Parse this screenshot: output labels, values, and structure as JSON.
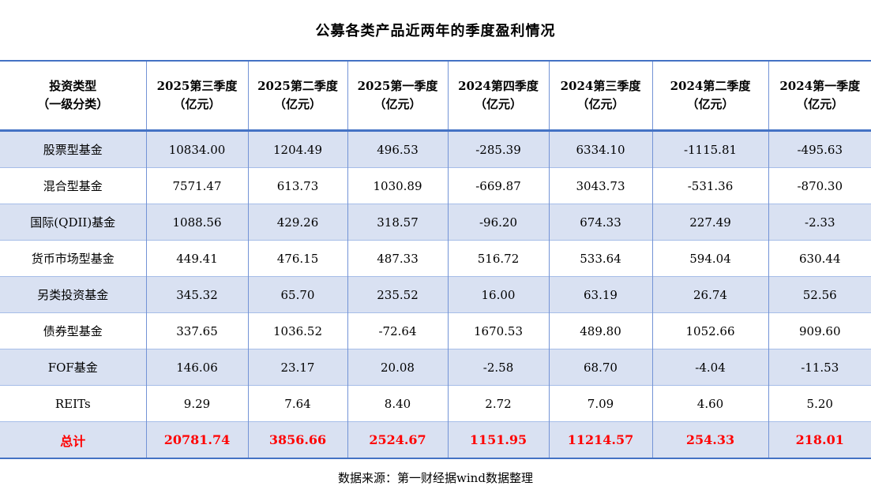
{
  "title": "公募各类产品近两年的季度盈利情况",
  "source_note": "数据来源：第一财经据wind数据整理",
  "colors": {
    "border_strong": "#4472C4",
    "border_vertical": "#7393D6",
    "border_row_separator": "#A6BDE8",
    "row_stripe_background": "#D9E1F2",
    "total_row_text": "#FF0000",
    "body_text": "#000000"
  },
  "table": {
    "header": [
      {
        "line1": "投资类型",
        "line2": "（一级分类）"
      },
      {
        "line1": "2025第三季度",
        "line2": "（亿元）"
      },
      {
        "line1": "2025第二季度",
        "line2": "（亿元）"
      },
      {
        "line1": "2025第一季度",
        "line2": "（亿元）"
      },
      {
        "line1": "2024第四季度",
        "line2": "（亿元）"
      },
      {
        "line1": "2024第三季度",
        "line2": "（亿元）"
      },
      {
        "line1": "2024第二季度",
        "line2": "（亿元）"
      },
      {
        "line1": "2024第一季度",
        "line2": "（亿元）"
      }
    ],
    "rows": [
      {
        "label": "股票型基金",
        "values": [
          "10834.00",
          "1204.49",
          "496.53",
          "-285.39",
          "6334.10",
          "-1115.81",
          "-495.63"
        ]
      },
      {
        "label": "混合型基金",
        "values": [
          "7571.47",
          "613.73",
          "1030.89",
          "-669.87",
          "3043.73",
          "-531.36",
          "-870.30"
        ]
      },
      {
        "label": "国际(QDII)基金",
        "values": [
          "1088.56",
          "429.26",
          "318.57",
          "-96.20",
          "674.33",
          "227.49",
          "-2.33"
        ]
      },
      {
        "label": "货币市场型基金",
        "values": [
          "449.41",
          "476.15",
          "487.33",
          "516.72",
          "533.64",
          "594.04",
          "630.44"
        ]
      },
      {
        "label": "另类投资基金",
        "values": [
          "345.32",
          "65.70",
          "235.52",
          "16.00",
          "63.19",
          "26.74",
          "52.56"
        ]
      },
      {
        "label": "债券型基金",
        "values": [
          "337.65",
          "1036.52",
          "-72.64",
          "1670.53",
          "489.80",
          "1052.66",
          "909.60"
        ]
      },
      {
        "label": "FOF基金",
        "values": [
          "146.06",
          "23.17",
          "20.08",
          "-2.58",
          "68.70",
          "-4.04",
          "-11.53"
        ]
      },
      {
        "label": "REITs",
        "values": [
          "9.29",
          "7.64",
          "8.40",
          "2.72",
          "7.09",
          "4.60",
          "5.20"
        ]
      }
    ],
    "total": {
      "label": "总计",
      "values": [
        "20781.74",
        "3856.66",
        "2524.67",
        "1151.95",
        "11214.57",
        "254.33",
        "218.01"
      ]
    }
  },
  "chart_data": {
    "type": "table",
    "title": "公募各类产品近两年的季度盈利情况",
    "unit": "亿元",
    "columns": [
      "投资类型（一级分类）",
      "2025第三季度（亿元）",
      "2025第二季度（亿元）",
      "2025第一季度（亿元）",
      "2024第四季度（亿元）",
      "2024第三季度（亿元）",
      "2024第二季度（亿元）",
      "2024第一季度（亿元）"
    ],
    "rows": [
      {
        "category": "股票型基金",
        "values": [
          10834.0,
          1204.49,
          496.53,
          -285.39,
          6334.1,
          -1115.81,
          -495.63
        ]
      },
      {
        "category": "混合型基金",
        "values": [
          7571.47,
          613.73,
          1030.89,
          -669.87,
          3043.73,
          -531.36,
          -870.3
        ]
      },
      {
        "category": "国际(QDII)基金",
        "values": [
          1088.56,
          429.26,
          318.57,
          -96.2,
          674.33,
          227.49,
          -2.33
        ]
      },
      {
        "category": "货币市场型基金",
        "values": [
          449.41,
          476.15,
          487.33,
          516.72,
          533.64,
          594.04,
          630.44
        ]
      },
      {
        "category": "另类投资基金",
        "values": [
          345.32,
          65.7,
          235.52,
          16.0,
          63.19,
          26.74,
          52.56
        ]
      },
      {
        "category": "债券型基金",
        "values": [
          337.65,
          1036.52,
          -72.64,
          1670.53,
          489.8,
          1052.66,
          909.6
        ]
      },
      {
        "category": "FOF基金",
        "values": [
          146.06,
          23.17,
          20.08,
          -2.58,
          68.7,
          -4.04,
          -11.53
        ]
      },
      {
        "category": "REITs",
        "values": [
          9.29,
          7.64,
          8.4,
          2.72,
          7.09,
          4.6,
          5.2
        ]
      },
      {
        "category": "总计",
        "values": [
          20781.74,
          3856.66,
          2524.67,
          1151.95,
          11214.57,
          254.33,
          218.01
        ]
      }
    ],
    "source": "数据来源：第一财经据wind数据整理"
  }
}
